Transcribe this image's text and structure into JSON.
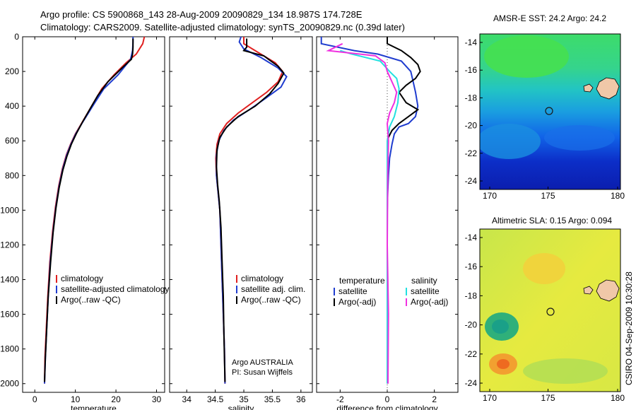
{
  "header": {
    "line1": "Argo profile: CS 5900868_143 28-Aug-2009 20090829_134 18.987S 174.728E",
    "line2": "Climatology: CARS2009. Satellite-adjusted climatology: synTS_20090829.nc (0.39d later)"
  },
  "colors": {
    "climatology": "#e02020",
    "satellite": "#1f3ccf",
    "argo": "#000000",
    "sat_diff": "#22e0e0",
    "argo_diff": "#f030e0",
    "land": "#f0c8a8",
    "marker": "#1a1a1a"
  },
  "chart_data": [
    {
      "id": "temperature",
      "type": "line",
      "xlabel": "temperature",
      "xlim": [
        -3,
        32
      ],
      "ylim": [
        2050,
        0
      ],
      "xticks": [
        0,
        10,
        20,
        30
      ],
      "yticks": [
        0,
        200,
        400,
        600,
        800,
        1000,
        1200,
        1400,
        1600,
        1800,
        2000
      ],
      "legend": [
        "climatology",
        "satellite-adjusted climatology",
        "Argo(..raw -QC)"
      ],
      "legend_position": "lower-middle",
      "series": [
        {
          "name": "climatology",
          "color_key": "climatology",
          "points": [
            [
              27.0,
              0
            ],
            [
              26.6,
              40
            ],
            [
              25.0,
              100
            ],
            [
              22.5,
              150
            ],
            [
              19.5,
              220
            ],
            [
              16.5,
              300
            ],
            [
              14.5,
              380
            ],
            [
              13.0,
              440
            ],
            [
              11.5,
              500
            ],
            [
              10.0,
              560
            ],
            [
              8.8,
              620
            ],
            [
              7.8,
              680
            ],
            [
              6.8,
              760
            ],
            [
              5.9,
              860
            ],
            [
              5.1,
              980
            ],
            [
              4.4,
              1120
            ],
            [
              3.7,
              1300
            ],
            [
              3.2,
              1500
            ],
            [
              2.8,
              1700
            ],
            [
              2.5,
              1850
            ],
            [
              2.4,
              2000
            ]
          ]
        },
        {
          "name": "satellite-adjusted climatology",
          "color_key": "satellite",
          "points": [
            [
              24.2,
              0
            ],
            [
              24.2,
              30
            ],
            [
              24.1,
              80
            ],
            [
              23.6,
              130
            ],
            [
              20.5,
              220
            ],
            [
              17.0,
              300
            ],
            [
              14.8,
              380
            ],
            [
              13.2,
              440
            ],
            [
              11.6,
              500
            ],
            [
              10.1,
              560
            ],
            [
              8.9,
              620
            ],
            [
              7.9,
              680
            ],
            [
              6.9,
              760
            ],
            [
              6.0,
              860
            ],
            [
              5.2,
              980
            ],
            [
              4.5,
              1120
            ],
            [
              3.8,
              1300
            ],
            [
              3.3,
              1500
            ],
            [
              2.9,
              1700
            ],
            [
              2.6,
              1850
            ],
            [
              2.4,
              2000
            ]
          ]
        },
        {
          "name": "Argo(..raw -QC)",
          "color_key": "argo",
          "points": [
            [
              24.2,
              10
            ],
            [
              24.2,
              60
            ],
            [
              24.1,
              100
            ],
            [
              23.8,
              130
            ],
            [
              21.5,
              180
            ],
            [
              18.0,
              260
            ],
            [
              15.5,
              340
            ],
            [
              13.5,
              420
            ],
            [
              11.8,
              490
            ],
            [
              10.2,
              560
            ],
            [
              9.0,
              620
            ],
            [
              7.9,
              690
            ],
            [
              6.9,
              770
            ],
            [
              6.0,
              870
            ],
            [
              5.2,
              990
            ],
            [
              4.5,
              1130
            ],
            [
              3.9,
              1300
            ],
            [
              3.3,
              1500
            ],
            [
              2.9,
              1700
            ],
            [
              2.6,
              1850
            ],
            [
              2.4,
              1990
            ]
          ]
        }
      ]
    },
    {
      "id": "salinity",
      "type": "line",
      "xlabel": "salinity",
      "xlim": [
        33.7,
        36.2
      ],
      "ylim": [
        2050,
        0
      ],
      "xticks": [
        34,
        34.5,
        35,
        35.5,
        36
      ],
      "legend": [
        "climatology",
        "satellite adj. clim.",
        "Argo(..raw -QC)"
      ],
      "legend_position": "lower-right",
      "annotation": [
        "Argo AUSTRALIA",
        "PI: Susan Wijffels"
      ],
      "series": [
        {
          "name": "climatology",
          "color_key": "climatology",
          "points": [
            [
              35.0,
              0
            ],
            [
              35.0,
              40
            ],
            [
              35.25,
              90
            ],
            [
              35.55,
              150
            ],
            [
              35.68,
              200
            ],
            [
              35.6,
              260
            ],
            [
              35.4,
              320
            ],
            [
              35.15,
              380
            ],
            [
              34.9,
              440
            ],
            [
              34.7,
              500
            ],
            [
              34.58,
              560
            ],
            [
              34.53,
              620
            ],
            [
              34.51,
              700
            ],
            [
              34.52,
              800
            ],
            [
              34.55,
              900
            ],
            [
              34.58,
              1000
            ],
            [
              34.6,
              1200
            ],
            [
              34.62,
              1400
            ],
            [
              34.64,
              1600
            ],
            [
              34.66,
              1800
            ],
            [
              34.67,
              2000
            ]
          ]
        },
        {
          "name": "satellite adj. clim.",
          "color_key": "satellite",
          "points": [
            [
              34.95,
              0
            ],
            [
              34.92,
              30
            ],
            [
              35.0,
              70
            ],
            [
              35.3,
              120
            ],
            [
              35.6,
              180
            ],
            [
              35.75,
              230
            ],
            [
              35.65,
              290
            ],
            [
              35.4,
              350
            ],
            [
              35.1,
              420
            ],
            [
              34.82,
              480
            ],
            [
              34.65,
              540
            ],
            [
              34.56,
              600
            ],
            [
              34.52,
              680
            ],
            [
              34.52,
              800
            ],
            [
              34.55,
              900
            ],
            [
              34.58,
              1000
            ],
            [
              34.6,
              1200
            ],
            [
              34.62,
              1400
            ],
            [
              34.64,
              1600
            ],
            [
              34.66,
              1800
            ],
            [
              34.67,
              2000
            ]
          ]
        },
        {
          "name": "Argo(..raw -QC)",
          "color_key": "argo",
          "points": [
            [
              35.05,
              10
            ],
            [
              35.05,
              60
            ],
            [
              35.0,
              80
            ],
            [
              35.35,
              110
            ],
            [
              35.6,
              170
            ],
            [
              35.7,
              210
            ],
            [
              35.6,
              270
            ],
            [
              35.45,
              330
            ],
            [
              35.2,
              400
            ],
            [
              34.9,
              460
            ],
            [
              34.7,
              520
            ],
            [
              34.58,
              580
            ],
            [
              34.53,
              650
            ],
            [
              34.52,
              750
            ],
            [
              34.54,
              850
            ],
            [
              34.57,
              950
            ],
            [
              34.6,
              1100
            ],
            [
              34.62,
              1300
            ],
            [
              34.64,
              1500
            ],
            [
              34.65,
              1700
            ],
            [
              34.66,
              1850
            ],
            [
              34.67,
              1990
            ]
          ]
        }
      ]
    },
    {
      "id": "difference",
      "type": "line",
      "xlabel": "difference from climatology",
      "xlim": [
        -3,
        3
      ],
      "ylim": [
        2050,
        0
      ],
      "xticks": [
        -2,
        0,
        2
      ],
      "legend_left_title": "temperature",
      "legend_right_title": "salinity",
      "legend_left": [
        "satellite",
        "Argo(-adj)"
      ],
      "legend_right": [
        "satellite",
        "Argo(-adj)"
      ],
      "series": [
        {
          "name": "temperature satellite",
          "color_key": "satellite",
          "points": [
            [
              -2.8,
              0
            ],
            [
              -2.8,
              40
            ],
            [
              -1.4,
              80
            ],
            [
              -0.4,
              100
            ],
            [
              0.6,
              140
            ],
            [
              1.0,
              200
            ],
            [
              1.1,
              260
            ],
            [
              1.2,
              320
            ],
            [
              1.3,
              400
            ],
            [
              1.2,
              460
            ],
            [
              0.9,
              500
            ],
            [
              0.5,
              520
            ],
            [
              0.3,
              560
            ],
            [
              0.2,
              620
            ],
            [
              0.1,
              700
            ],
            [
              0.05,
              800
            ],
            [
              0.02,
              900
            ],
            [
              0.0,
              1000
            ]
          ]
        },
        {
          "name": "temperature Argo(-adj)",
          "color_key": "argo",
          "points": [
            [
              0.0,
              0
            ],
            [
              0.0,
              40
            ],
            [
              0.6,
              80
            ],
            [
              1.0,
              120
            ],
            [
              1.3,
              160
            ],
            [
              1.4,
              200
            ],
            [
              1.2,
              240
            ],
            [
              0.8,
              280
            ],
            [
              0.5,
              320
            ],
            [
              0.8,
              380
            ],
            [
              1.3,
              420
            ],
            [
              0.9,
              460
            ],
            [
              0.5,
              500
            ],
            [
              0.2,
              540
            ],
            [
              0.05,
              580
            ],
            [
              0.0,
              620
            ]
          ]
        },
        {
          "name": "salinity satellite",
          "color_key": "sat_diff",
          "points": [
            [
              -2.0,
              80
            ],
            [
              -1.5,
              100
            ],
            [
              -0.3,
              140
            ],
            [
              0.1,
              200
            ],
            [
              0.4,
              240
            ],
            [
              0.5,
              300
            ],
            [
              0.45,
              380
            ],
            [
              0.3,
              460
            ],
            [
              0.1,
              520
            ],
            [
              0.0,
              600
            ],
            [
              0.0,
              800
            ],
            [
              0.0,
              1200
            ],
            [
              0.0,
              1600
            ],
            [
              0.0,
              2000
            ]
          ]
        },
        {
          "name": "salinity Argo(-adj)",
          "color_key": "argo_diff",
          "points": [
            [
              -1.9,
              40
            ],
            [
              -2.5,
              80
            ],
            [
              -0.5,
              110
            ],
            [
              -0.1,
              150
            ],
            [
              0.0,
              200
            ],
            [
              0.2,
              260
            ],
            [
              0.4,
              320
            ],
            [
              0.3,
              380
            ],
            [
              0.1,
              440
            ],
            [
              0.0,
              500
            ],
            [
              0.05,
              600
            ],
            [
              0.02,
              800
            ],
            [
              0.0,
              1200
            ],
            [
              0.05,
              1600
            ],
            [
              0.03,
              2000
            ]
          ]
        }
      ]
    }
  ],
  "maps": {
    "sst": {
      "title": "AMSR-E SST: 24.2 Argo: 24.2",
      "xticks": [
        "170",
        "175",
        "180"
      ],
      "yticks": [
        "-14",
        "-16",
        "-18",
        "-20",
        "-22",
        "-24"
      ],
      "colorscale": "jet",
      "land": "Fiji"
    },
    "sla": {
      "title": "Altimetric SLA: 0.15 Argo: 0.094",
      "xticks": [
        "170",
        "175",
        "180"
      ],
      "yticks": [
        "-14",
        "-16",
        "-18",
        "-20",
        "-22",
        "-24"
      ],
      "colorscale": "jet",
      "land": "Fiji"
    }
  },
  "footer": {
    "stamp": "CSIRO 04-Sep-2009 10:30:28"
  }
}
